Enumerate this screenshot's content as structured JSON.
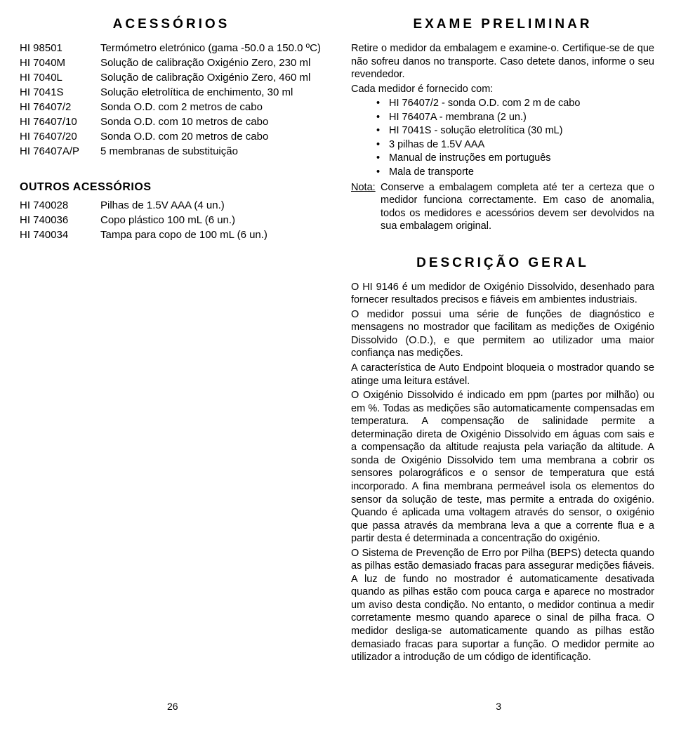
{
  "left": {
    "title": "ACESSÓRIOS",
    "rows": [
      {
        "code": "HI 98501",
        "desc": "Termómetro eletrónico (gama -50.0 a 150.0 ºC)"
      },
      {
        "code": "HI 7040M",
        "desc": "Solução de calibração Oxigénio Zero, 230 ml"
      },
      {
        "code": "HI 7040L",
        "desc": "Solução de calibração Oxigénio Zero, 460 ml"
      },
      {
        "code": "HI 7041S",
        "desc": "Solução eletrolítica de enchimento, 30 ml"
      },
      {
        "code": "HI 76407/2",
        "desc": "Sonda O.D. com 2 metros de cabo"
      },
      {
        "code": "HI 76407/10",
        "desc": "Sonda O.D. com 10 metros de cabo"
      },
      {
        "code": "HI 76407/20",
        "desc": "Sonda O.D. com 20 metros de cabo"
      },
      {
        "code": "HI 76407A/P",
        "desc": "5 membranas de substituição"
      }
    ],
    "subTitle": "OUTROS ACESSÓRIOS",
    "subRows": [
      {
        "code": "HI 740028",
        "desc": "Pilhas de 1.5V AAA  (4 un.)"
      },
      {
        "code": "HI 740036",
        "desc": "Copo plástico 100 mL (6 un.)"
      },
      {
        "code": "HI 740034",
        "desc": "Tampa para copo de 100 mL (6 un.)"
      }
    ],
    "pageNum": "26"
  },
  "right": {
    "examTitle": "EXAME PRELIMINAR",
    "examIntro1": "Retire o medidor da embalagem e examine-o. Certifique-se de que não sofreu danos no transporte. Caso detete danos, informe o seu revendedor.",
    "examIntro2": "Cada medidor é fornecido com:",
    "bullets": [
      "HI 76407/2 - sonda O.D. com 2 m de cabo",
      "HI 76407A - membrana (2 un.)",
      "HI 7041S - solução eletrolítica (30 mL)",
      "3 pilhas de 1.5V AAA",
      "Manual de instruções em português",
      "Mala de transporte"
    ],
    "notaLabel": "Nota:",
    "notaText": "Conserve a embalagem completa até ter a certeza que o medidor funciona correctamente. Em caso de anomalia, todos os medidores e acessórios devem ser devolvidos na sua embalagem original.",
    "descTitle": "DESCRIÇÃO GERAL",
    "descParas": [
      "O HI 9146 é um medidor de Oxigénio Dissolvido, desenhado para fornecer resultados precisos e fiáveis em ambientes industriais.",
      "O medidor possui uma série de funções de diagnóstico e mensagens no mostrador que facilitam as medições de Oxigénio Dissolvido (O.D.), e que permitem ao utilizador uma maior confiança nas medições.",
      "A característica de Auto Endpoint bloqueia o mostrador quando se atinge uma leitura estável.",
      "O Oxigénio Dissolvido é indicado em ppm (partes por milhão) ou em %. Todas as medições são automaticamente compensadas em temperatura. A compensação de salinidade permite a determinação direta de Oxigénio Dissolvido em águas com sais e a compensação da altitude reajusta pela variação da altitude. A sonda de Oxigénio Dissolvido tem uma membrana a cobrir os sensores polarográficos e o sensor de temperatura que está incorporado. A fina membrana permeável isola os elementos do sensor da solução de teste, mas permite a entrada do oxigénio. Quando é aplicada uma voltagem através do sensor, o oxigénio que passa através da membrana leva a que a corrente flua e a partir desta é determinada a concentração do oxigénio.",
      "O Sistema de Prevenção de Erro por Pilha (BEPS) detecta quando as pilhas estão demasiado fracas para assegurar medições fiáveis. A luz de fundo no mostrador é automaticamente desativada quando as pilhas estão com pouca carga e aparece no mostrador um aviso desta condição. No entanto, o medidor continua a medir corretamente mesmo quando aparece o sinal de pilha fraca. O medidor desliga-se automaticamente quando as pilhas estão demasiado fracas para suportar a função. O medidor permite ao utilizador a introdução de um código de identificação."
    ],
    "pageNum": "3"
  }
}
